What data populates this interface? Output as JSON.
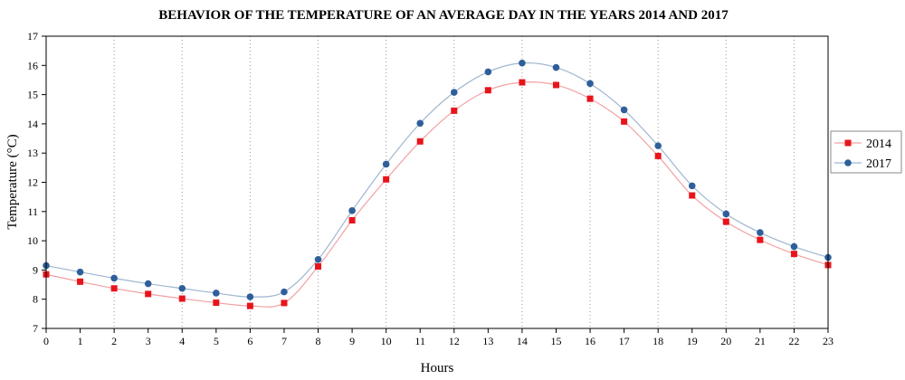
{
  "chart_data": {
    "type": "line",
    "title": "BEHAVIOR OF THE TEMPERATURE  OF AN AVERAGE DAY IN THE YEARS 2014 AND 2017",
    "xlabel": "Hours",
    "ylabel": "Temperature (°C)",
    "x": [
      0,
      1,
      2,
      3,
      4,
      5,
      6,
      7,
      8,
      9,
      10,
      11,
      12,
      13,
      14,
      15,
      16,
      17,
      18,
      19,
      20,
      21,
      22,
      23
    ],
    "xlim": [
      0,
      23
    ],
    "ylim": [
      7,
      17
    ],
    "x_ticks": [
      "0",
      "1",
      "2",
      "3",
      "4",
      "5",
      "6",
      "7",
      "8",
      "9",
      "10",
      "11",
      "12",
      "13",
      "14",
      "15",
      "16",
      "17",
      "18",
      "19",
      "20",
      "21",
      "22",
      "23"
    ],
    "y_ticks": [
      "7",
      "8",
      "9",
      "10",
      "11",
      "12",
      "13",
      "14",
      "15",
      "16",
      "17"
    ],
    "grid": "vertical dotted",
    "legend_position": "right",
    "series": [
      {
        "name": "2014",
        "color": "#e8141c",
        "line_color": "#f2a0a3",
        "marker": "square",
        "values": [
          8.85,
          8.6,
          8.37,
          8.18,
          8.02,
          7.88,
          7.77,
          7.87,
          9.12,
          10.7,
          12.1,
          13.4,
          14.45,
          15.15,
          15.42,
          15.33,
          14.86,
          14.08,
          12.9,
          11.55,
          10.65,
          10.03,
          9.55,
          9.17
        ]
      },
      {
        "name": "2017",
        "color": "#2e5f9a",
        "line_color": "#9fb6d0",
        "marker": "circle",
        "values": [
          9.15,
          8.93,
          8.72,
          8.53,
          8.37,
          8.21,
          8.08,
          8.25,
          9.36,
          11.03,
          12.62,
          14.02,
          15.08,
          15.78,
          16.08,
          15.93,
          15.38,
          14.48,
          13.25,
          11.88,
          10.92,
          10.28,
          9.8,
          9.43
        ]
      }
    ]
  }
}
